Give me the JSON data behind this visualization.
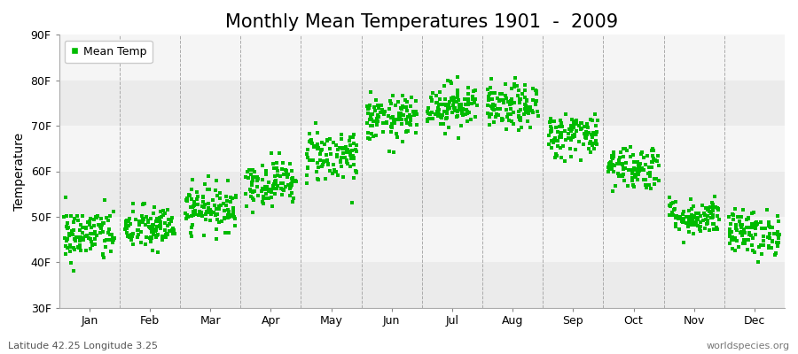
{
  "title": "Monthly Mean Temperatures 1901  -  2009",
  "ylabel": "Temperature",
  "xlabel": "",
  "bottom_left_text": "Latitude 42.25 Longitude 3.25",
  "bottom_right_text": "worldspecies.org",
  "legend_label": "Mean Temp",
  "marker_color": "#00BB00",
  "background_color": "#FFFFFF",
  "plot_bg_color": "#F5F5F5",
  "band_color": "#EBEBEB",
  "dashed_line_color": "#AAAAAA",
  "ylim": [
    30,
    90
  ],
  "yticks": [
    30,
    40,
    50,
    60,
    70,
    80,
    90
  ],
  "ytick_labels": [
    "30F",
    "40F",
    "50F",
    "60F",
    "70F",
    "80F",
    "90F"
  ],
  "months": [
    "Jan",
    "Feb",
    "Mar",
    "Apr",
    "May",
    "Jun",
    "Jul",
    "Aug",
    "Sep",
    "Oct",
    "Nov",
    "Dec"
  ],
  "month_means_F": [
    46.0,
    47.5,
    52.0,
    57.5,
    63.5,
    71.5,
    74.5,
    74.0,
    68.0,
    61.0,
    50.0,
    46.5
  ],
  "month_stds_F": [
    3.0,
    2.5,
    2.5,
    2.5,
    3.0,
    2.5,
    2.5,
    2.5,
    2.5,
    2.5,
    2.0,
    2.5
  ],
  "n_years": 109,
  "seed": 42,
  "title_fontsize": 15,
  "axis_fontsize": 10,
  "tick_fontsize": 9,
  "legend_fontsize": 9,
  "marker_size": 2.5,
  "figsize": [
    9.0,
    4.0
  ],
  "dpi": 100
}
